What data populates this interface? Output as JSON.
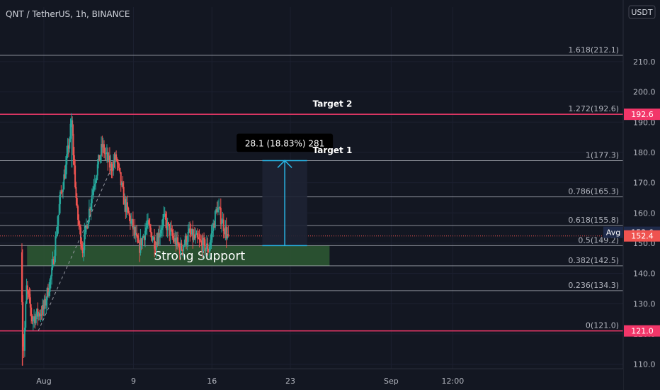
{
  "header": {
    "title": "QNT / TetherUS, 1h, BINANCE"
  },
  "currency_badge": "USDT",
  "colors": {
    "background": "#131722",
    "up": "#26a69a",
    "down": "#ef5350",
    "target_line": "#f23669",
    "fib_line": "#b2b5be",
    "support_zone": "#2e5a32",
    "measure": "#2ab6e6",
    "axis_text": "#b2b5be"
  },
  "chart_data": {
    "type": "candlestick",
    "y_axis": {
      "range": [
        108.5,
        221.0
      ],
      "ticks": [
        110.0,
        120.0,
        130.0,
        140.0,
        150.0,
        160.0,
        170.0,
        180.0,
        190.0,
        200.0,
        210.0
      ]
    },
    "x_axis": {
      "range": [
        "Jul 28 02:00",
        "Sep 21 17:00"
      ],
      "ticks": [
        {
          "label": "Aug",
          "date": "Aug 1"
        },
        {
          "label": "9",
          "date": "Aug 9"
        },
        {
          "label": "16",
          "date": "Aug 16"
        },
        {
          "label": "23",
          "date": "Aug 23"
        },
        {
          "label": "Sep",
          "date": "Sep 1"
        },
        {
          "label": "12:00",
          "date": "Sep 6 12:00"
        }
      ]
    },
    "price_path": {
      "start": "Jul 30 00:00",
      "end": "Aug 17 10:00",
      "points": [
        {
          "date": "Jul 30 00:00",
          "price": 147.0
        },
        {
          "date": "Jul 30 05:00",
          "price": 112.0
        },
        {
          "date": "Jul 30 12:00",
          "price": 135.0
        },
        {
          "date": "Jul 31 00:00",
          "price": 125.0
        },
        {
          "date": "Aug 1 00:00",
          "price": 128.0
        },
        {
          "date": "Aug 1 18:00",
          "price": 140.0
        },
        {
          "date": "Aug 2 12:00",
          "price": 165.0
        },
        {
          "date": "Aug 3 00:00",
          "price": 175.0
        },
        {
          "date": "Aug 3 12:00",
          "price": 190.0
        },
        {
          "date": "Aug 4 00:00",
          "price": 160.0
        },
        {
          "date": "Aug 4 12:00",
          "price": 148.0
        },
        {
          "date": "Aug 5 12:00",
          "price": 170.0
        },
        {
          "date": "Aug 6 06:00",
          "price": 182.0
        },
        {
          "date": "Aug 7 00:00",
          "price": 175.0
        },
        {
          "date": "Aug 7 12:00",
          "price": 178.0
        },
        {
          "date": "Aug 8 06:00",
          "price": 163.0
        },
        {
          "date": "Aug 9 00:00",
          "price": 155.0
        },
        {
          "date": "Aug 9 12:00",
          "price": 148.0
        },
        {
          "date": "Aug 10 06:00",
          "price": 156.0
        },
        {
          "date": "Aug 11 00:00",
          "price": 150.0
        },
        {
          "date": "Aug 11 18:00",
          "price": 158.0
        },
        {
          "date": "Aug 12 12:00",
          "price": 152.0
        },
        {
          "date": "Aug 13 06:00",
          "price": 148.0
        },
        {
          "date": "Aug 14 00:00",
          "price": 153.0
        },
        {
          "date": "Aug 15 00:00",
          "price": 150.0
        },
        {
          "date": "Aug 15 18:00",
          "price": 148.0
        },
        {
          "date": "Aug 16 12:00",
          "price": 162.0
        },
        {
          "date": "Aug 17 10:00",
          "price": 152.4
        }
      ]
    },
    "fib_levels": [
      {
        "label": "1.618(212.1)",
        "price": 212.1
      },
      {
        "label": "1.272(192.6)",
        "price": 192.6
      },
      {
        "label": "1(177.3)",
        "price": 177.3
      },
      {
        "label": "0.786(165.3)",
        "price": 165.3
      },
      {
        "label": "0.618(155.8)",
        "price": 155.8
      },
      {
        "label": "0.5(149.2)",
        "price": 149.2
      },
      {
        "label": "0.382(142.5)",
        "price": 142.5
      },
      {
        "label": "0.236(134.3)",
        "price": 134.3
      },
      {
        "label": "0(121.0)",
        "price": 121.0
      }
    ],
    "horizontal_lines": [
      {
        "price": 192.6,
        "badge": "192.6"
      },
      {
        "price": 121.0,
        "badge": "121.0"
      }
    ],
    "price_badges": [
      {
        "price": 153.6,
        "label": "Avg",
        "value": "153.6"
      },
      {
        "price": 152.4,
        "value": "152.4"
      }
    ],
    "current_price": 152.4,
    "trendline": {
      "from": {
        "date": "Jul 31 12:00",
        "price": 121.0
      },
      "to": {
        "date": "Aug 7 00:00",
        "price": 174.5
      }
    },
    "support_zone": {
      "from": "Jul 30 12:00",
      "to": "Aug 26 12:00",
      "low": 142.5,
      "high": 149.2,
      "label": "Strong Support"
    },
    "measure": {
      "date": "Aug 22 12:00",
      "from_price": 149.2,
      "to_price": 177.3,
      "box_from": "Aug 20 12:00",
      "box_to": "Aug 24 12:00",
      "label": "28.1 (18.83%) 281"
    },
    "annotations": [
      {
        "text": "Target 2",
        "date": "Aug 25 00:00",
        "price": 194.6
      },
      {
        "text": "Target 1",
        "date": "Aug 25 00:00",
        "price": 179.3
      }
    ]
  }
}
